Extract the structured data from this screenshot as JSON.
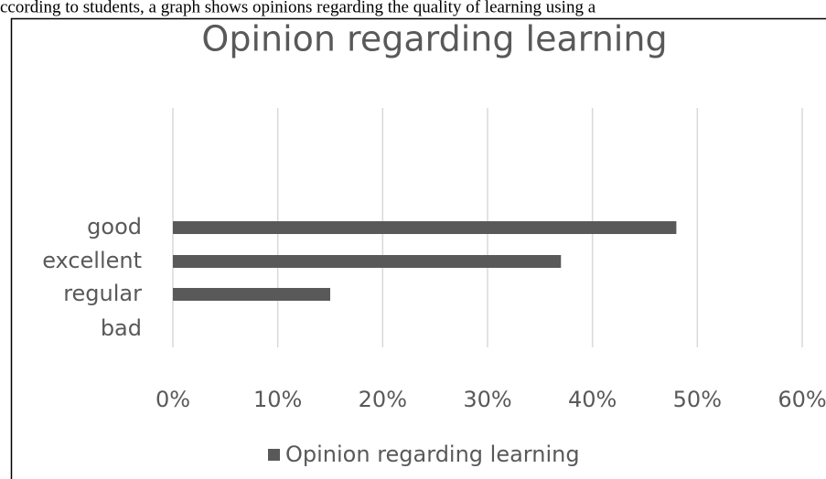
{
  "caption": "ccording to students, a graph shows opinions regarding the quality of learning using a",
  "chart_data": {
    "type": "bar",
    "orientation": "horizontal",
    "title": "Opinion regarding learning",
    "categories": [
      "good",
      "excellent",
      "regular",
      "bad"
    ],
    "series": [
      {
        "name": "Opinion regarding learning",
        "color": "#595959",
        "values": [
          48,
          37,
          15,
          0
        ]
      }
    ],
    "xlim": [
      0,
      60
    ],
    "xticks": [
      {
        "value": 0,
        "label": "0%"
      },
      {
        "value": 10,
        "label": "10%"
      },
      {
        "value": 20,
        "label": "20%"
      },
      {
        "value": 30,
        "label": "30%"
      },
      {
        "value": 40,
        "label": "40%"
      },
      {
        "value": 50,
        "label": "50%"
      },
      {
        "value": 60,
        "label": "60%"
      }
    ],
    "grid": true,
    "legend": "bottom"
  }
}
